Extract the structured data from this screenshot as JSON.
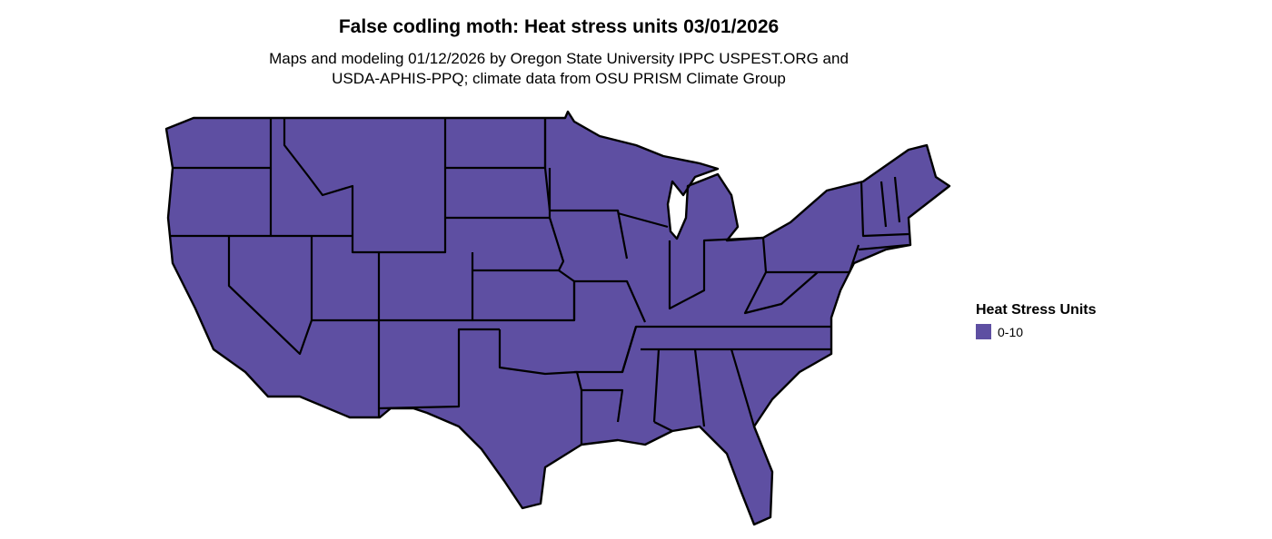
{
  "title": "False codling moth: Heat stress units 03/01/2026",
  "subtitle_line1": "Maps and modeling 01/12/2026 by Oregon State University IPPC USPEST.ORG and",
  "subtitle_line2": "USDA-APHIS-PPQ; climate data from OSU PRISM Climate Group",
  "map": {
    "fill_color": "#5e4fa2",
    "border_color": "#000000"
  },
  "legend": {
    "title": "Heat Stress Units",
    "items": [
      {
        "label": "0-10",
        "color": "#5e4fa2"
      }
    ]
  }
}
